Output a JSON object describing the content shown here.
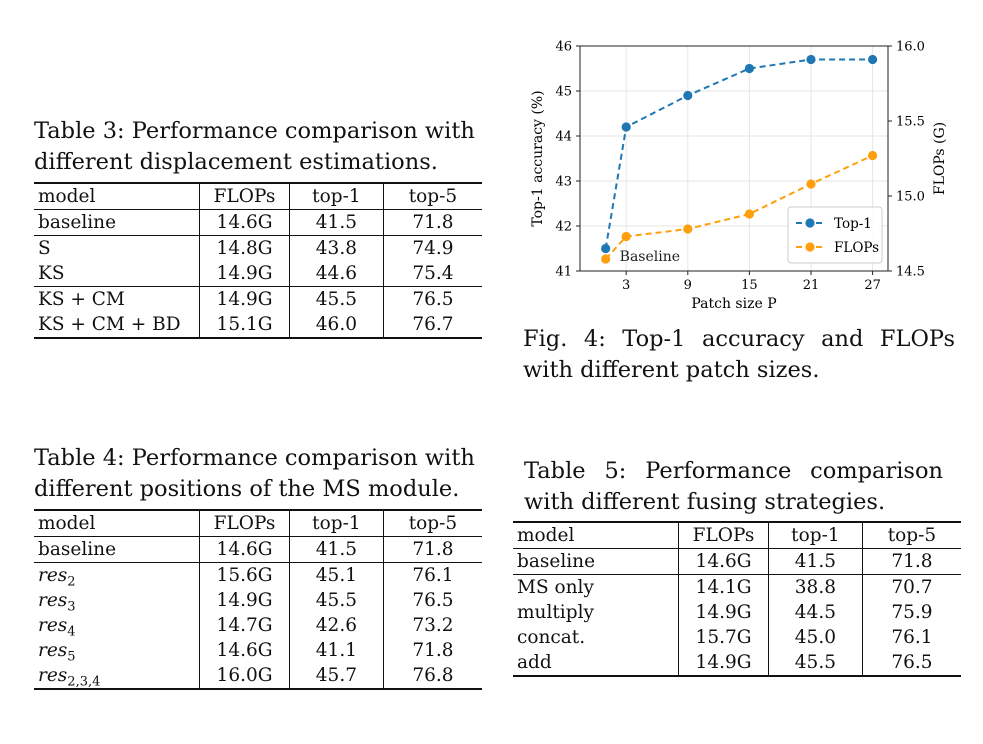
{
  "table3": {
    "caption_lines": [
      "Table 3: Performance comparison with",
      "different displacement estimations."
    ],
    "headers": [
      "model",
      "FLOPs",
      "top-1",
      "top-5"
    ],
    "groups": [
      [
        [
          "baseline",
          "14.6G",
          "41.5",
          "71.8"
        ]
      ],
      [
        [
          "S",
          "14.8G",
          "43.8",
          "74.9"
        ],
        [
          "KS",
          "14.9G",
          "44.6",
          "75.4"
        ]
      ],
      [
        [
          "KS + CM",
          "14.9G",
          "45.5",
          "76.5"
        ],
        [
          "KS + CM + BD",
          "15.1G",
          "46.0",
          "76.7"
        ]
      ]
    ]
  },
  "table4": {
    "caption_lines": [
      "Table 4: Performance comparison with",
      "different positions of the MS module."
    ],
    "headers": [
      "model",
      "FLOPs",
      "top-1",
      "top-5"
    ],
    "baseline": [
      "baseline",
      "14.6G",
      "41.5",
      "71.8"
    ],
    "res_rows": [
      {
        "base": "res",
        "sub": "2",
        "flops": "15.6G",
        "top1": "45.1",
        "top5": "76.1"
      },
      {
        "base": "res",
        "sub": "3",
        "flops": "14.9G",
        "top1": "45.5",
        "top5": "76.5"
      },
      {
        "base": "res",
        "sub": "4",
        "flops": "14.7G",
        "top1": "42.6",
        "top5": "73.2"
      },
      {
        "base": "res",
        "sub": "5",
        "flops": "14.6G",
        "top1": "41.1",
        "top5": "71.8"
      },
      {
        "base": "res",
        "sub": "2,3,4",
        "flops": "16.0G",
        "top1": "45.7",
        "top5": "76.8"
      }
    ]
  },
  "table5": {
    "caption_lines": [
      "Table 5: Performance comparison",
      "with different fusing strategies."
    ],
    "headers": [
      "model",
      "FLOPs",
      "top-1",
      "top-5"
    ],
    "groups": [
      [
        [
          "baseline",
          "14.6G",
          "41.5",
          "71.8"
        ]
      ],
      [
        [
          "MS only",
          "14.1G",
          "38.8",
          "70.7"
        ],
        [
          "multiply",
          "14.9G",
          "44.5",
          "75.9"
        ],
        [
          "concat.",
          "15.7G",
          "45.0",
          "76.1"
        ],
        [
          "add",
          "14.9G",
          "45.5",
          "76.5"
        ]
      ]
    ]
  },
  "fig4": {
    "caption_lines": [
      "Fig. 4: Top-1 accuracy and FLOPs",
      "with different patch sizes."
    ]
  },
  "chart_data": {
    "type": "line",
    "xlabel": "Patch size P",
    "ylabel": "Top-1 accuracy (%)",
    "y2label": "FLOPs (G)",
    "x_ticks": [
      "3",
      "9",
      "15",
      "21",
      "27"
    ],
    "x_tick_values": [
      3,
      9,
      15,
      21,
      27
    ],
    "xlim": [
      -1.5,
      28.5
    ],
    "ylim": [
      41,
      46
    ],
    "y_ticks": [
      41,
      42,
      43,
      44,
      45,
      46
    ],
    "y2lim": [
      14.5,
      16.0
    ],
    "y2_ticks": [
      "14.5",
      "15.0",
      "15.5",
      "16.0"
    ],
    "y2_tick_values": [
      14.5,
      15.0,
      15.5,
      16.0
    ],
    "grid": true,
    "legend_position": "lower-right",
    "annotation": "Baseline",
    "series": [
      {
        "name": "Top-1",
        "axis": "left",
        "color": "#1f77b4",
        "points": [
          [
            1,
            41.5
          ],
          [
            3,
            44.2
          ],
          [
            9,
            44.9
          ],
          [
            15,
            45.5
          ],
          [
            21,
            45.7
          ],
          [
            27,
            45.7
          ]
        ]
      },
      {
        "name": "FLOPs",
        "axis": "right",
        "color": "#ff9f0e",
        "points": [
          [
            1,
            14.58
          ],
          [
            3,
            14.73
          ],
          [
            9,
            14.78
          ],
          [
            15,
            14.88
          ],
          [
            21,
            15.08
          ],
          [
            27,
            15.27
          ]
        ]
      }
    ]
  }
}
